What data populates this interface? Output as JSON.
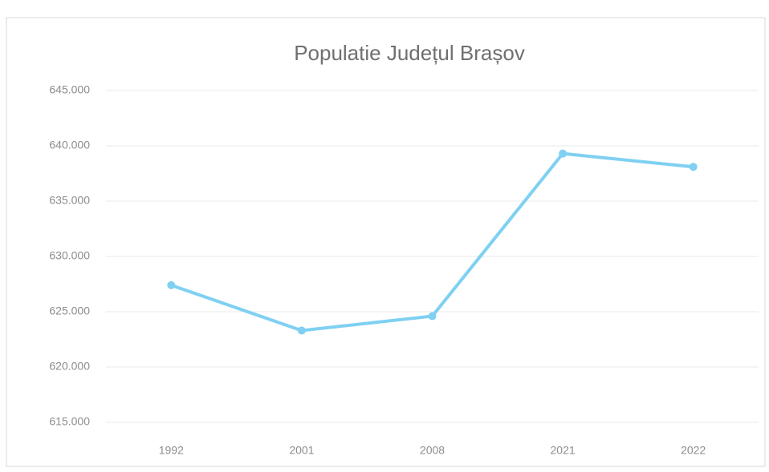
{
  "chart_data": {
    "type": "line",
    "title": "Populatie Județul Brașov",
    "categories": [
      "1992",
      "2001",
      "2008",
      "2021",
      "2022"
    ],
    "series": [
      {
        "name": "Populatie",
        "color": "#7fd0f2",
        "values": [
          627400,
          623300,
          624600,
          639300,
          638100
        ]
      }
    ],
    "ylim": [
      615000,
      645000
    ],
    "yticks": [
      {
        "value": 615000,
        "label": "615.000"
      },
      {
        "value": 620000,
        "label": "620.000"
      },
      {
        "value": 625000,
        "label": "625.000"
      },
      {
        "value": 630000,
        "label": "630.000"
      },
      {
        "value": 635000,
        "label": "635.000"
      },
      {
        "value": 640000,
        "label": "640.000"
      },
      {
        "value": 645000,
        "label": "645.000"
      }
    ],
    "grid": true
  }
}
